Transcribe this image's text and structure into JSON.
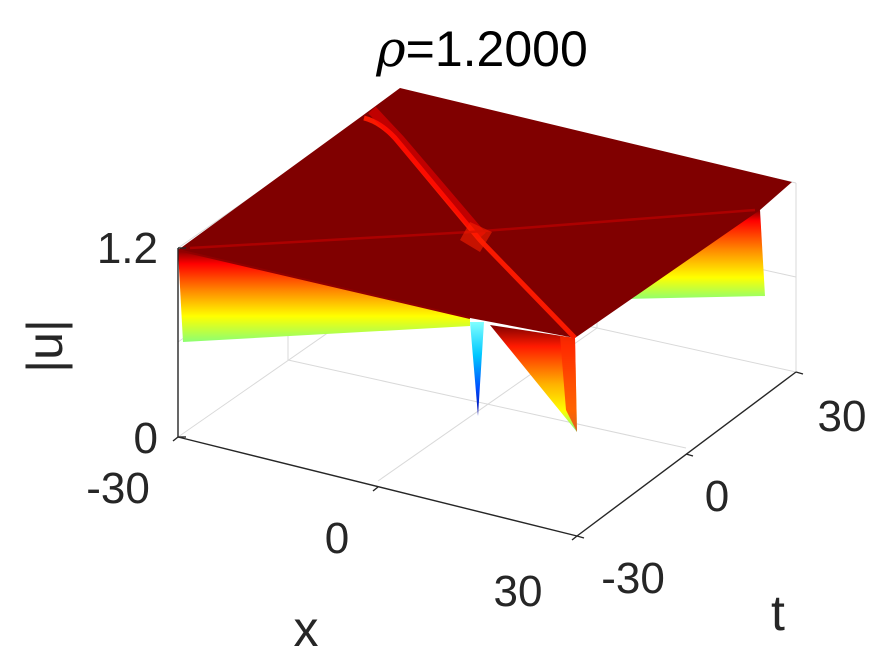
{
  "chart_data": {
    "type": "surface",
    "title_greek": "ρ",
    "title_rest": "=1.2000",
    "xlabel": "x",
    "ylabel": "t",
    "zlabel": "|u|",
    "xlim": [
      -30,
      30
    ],
    "ylim": [
      -30,
      30
    ],
    "zlim": [
      0,
      1.2
    ],
    "x_ticks": [
      "-30",
      "0",
      "30"
    ],
    "y_ticks": [
      "-30",
      "0",
      "30"
    ],
    "z_ticks": [
      "0",
      "1.2"
    ],
    "colormap": "jet",
    "plateau_value": 1.2,
    "edge_min_value": 0.7,
    "center_min_value": 0.1,
    "grid": true,
    "colors": {
      "plateau": "#800000",
      "ridge": "#ff1a00",
      "axis": "#262626",
      "grid": "#d9d9d9"
    }
  }
}
